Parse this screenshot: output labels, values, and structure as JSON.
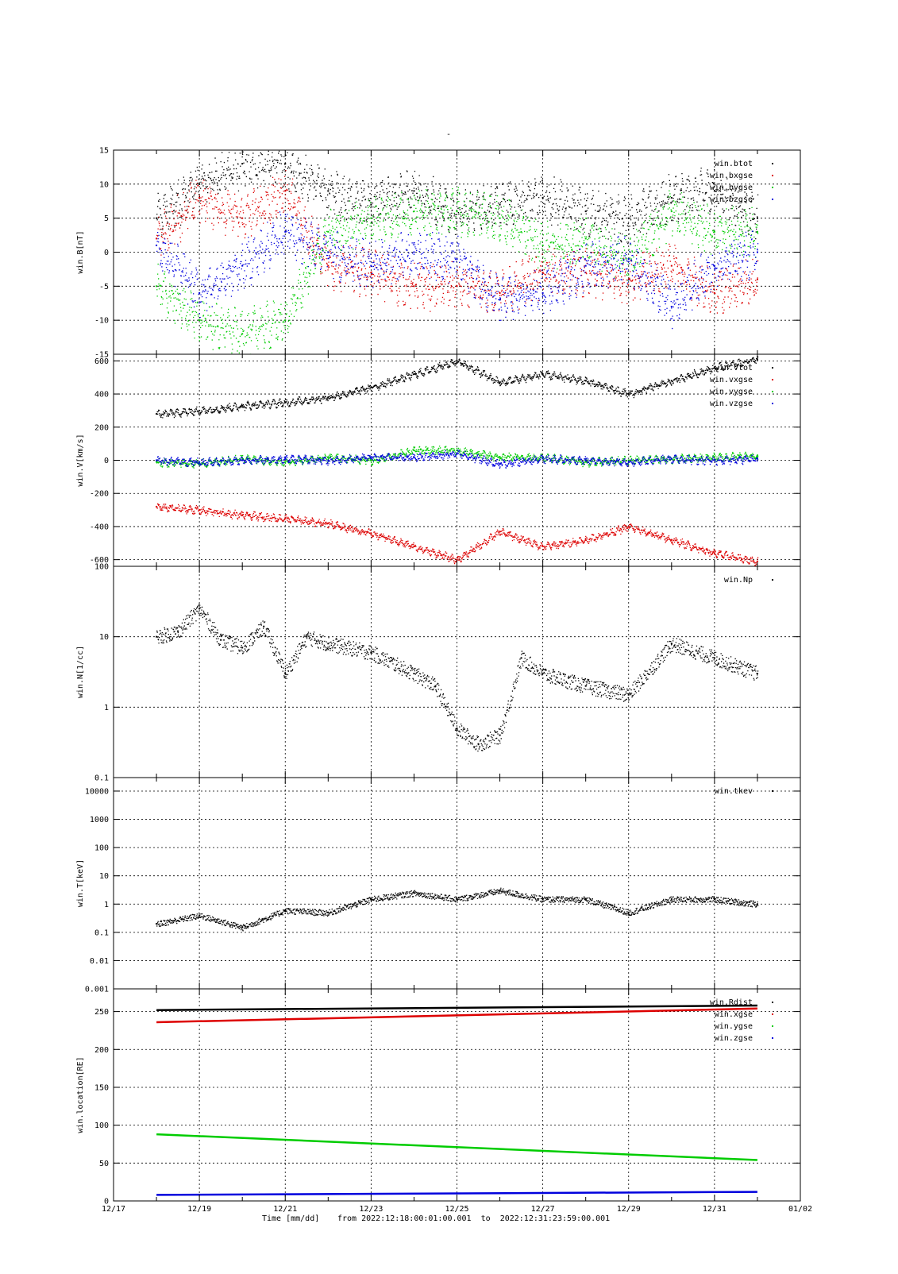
{
  "page_title": "-",
  "footer": {
    "xlabel": "Time [mm/dd]",
    "range_text": "from 2022:12:18:00:01:00.001  to  2022:12:31:23:59:00.001"
  },
  "colors": {
    "black": "#000000",
    "red": "#dd0000",
    "green": "#00cc00",
    "blue": "#0000dd"
  },
  "chart_data": [
    {
      "type": "scatter",
      "ylabel": "win.B[nT]",
      "xlim": [
        "12/17",
        "01/02"
      ],
      "ylim": [
        -15,
        15
      ],
      "yscale": "linear",
      "yticks": [
        -15,
        -10,
        -5,
        0,
        5,
        10,
        15
      ],
      "grid": true,
      "legend_position": "top-right",
      "series": [
        {
          "name": "win.btot",
          "color": "#000000",
          "x": [
            "12/18",
            "12/19",
            "12/20",
            "12/21",
            "12/22",
            "12/23",
            "12/24",
            "12/25",
            "12/26",
            "12/27",
            "12/28",
            "12/29",
            "12/30",
            "12/31",
            "12/31 24:00"
          ],
          "y": [
            5,
            10,
            13,
            13,
            9,
            7,
            9,
            6,
            7,
            8,
            6,
            5,
            8,
            9,
            5
          ]
        },
        {
          "name": "win.bxgse",
          "color": "#dd0000",
          "x": [
            "12/18",
            "12/19",
            "12/20",
            "12/21",
            "12/22",
            "12/23",
            "12/24",
            "12/25",
            "12/26",
            "12/27",
            "12/28",
            "12/29",
            "12/30",
            "12/31",
            "12/31 24:00"
          ],
          "y": [
            2,
            8,
            5,
            9,
            -2,
            -3,
            -5,
            -5,
            -6,
            -3,
            -3,
            -4,
            -2,
            -6,
            -4
          ]
        },
        {
          "name": "win.bygse",
          "color": "#00cc00",
          "x": [
            "12/18",
            "12/19",
            "12/20",
            "12/21",
            "12/22",
            "12/23",
            "12/24",
            "12/25",
            "12/26",
            "12/27",
            "12/28",
            "12/29",
            "12/30",
            "12/31",
            "12/31 24:00"
          ],
          "y": [
            -5,
            -10,
            -12,
            -10,
            3,
            5,
            6,
            6,
            5,
            1,
            2,
            -1,
            6,
            3,
            3
          ]
        },
        {
          "name": "win.bzgse",
          "color": "#0000dd",
          "x": [
            "12/18",
            "12/19",
            "12/20",
            "12/21",
            "12/22",
            "12/23",
            "12/24",
            "12/25",
            "12/26",
            "12/27",
            "12/28",
            "12/29",
            "12/30",
            "12/31",
            "12/31 24:00"
          ],
          "y": [
            1,
            -6,
            -2,
            3,
            0,
            -2,
            0,
            -1,
            -7,
            -6,
            -2,
            -1,
            -8,
            -2,
            0
          ]
        }
      ]
    },
    {
      "type": "scatter",
      "ylabel": "win.V[km/s]",
      "xlim": [
        "12/17",
        "01/02"
      ],
      "ylim": [
        -640,
        640
      ],
      "yscale": "linear",
      "yticks": [
        -600,
        -400,
        -200,
        0,
        200,
        400,
        600
      ],
      "grid": true,
      "legend_position": "top-right",
      "series": [
        {
          "name": "win.vtot",
          "color": "#000000",
          "x": [
            "12/18",
            "12/19",
            "12/20",
            "12/21",
            "12/22",
            "12/23",
            "12/24",
            "12/25",
            "12/26",
            "12/27",
            "12/28",
            "12/29",
            "12/30",
            "12/31",
            "12/31 24:00"
          ],
          "y": [
            280,
            300,
            330,
            350,
            380,
            440,
            520,
            600,
            470,
            520,
            480,
            400,
            480,
            560,
            610
          ]
        },
        {
          "name": "win.vxgse",
          "color": "#dd0000",
          "x": [
            "12/18",
            "12/19",
            "12/20",
            "12/21",
            "12/22",
            "12/23",
            "12/24",
            "12/25",
            "12/26",
            "12/27",
            "12/28",
            "12/29",
            "12/30",
            "12/31",
            "12/31 24:00"
          ],
          "y": [
            -280,
            -300,
            -330,
            -350,
            -380,
            -440,
            -520,
            -600,
            -430,
            -520,
            -480,
            -400,
            -480,
            -560,
            -610
          ]
        },
        {
          "name": "win.vygse",
          "color": "#00cc00",
          "x": [
            "12/18",
            "12/19",
            "12/20",
            "12/21",
            "12/22",
            "12/23",
            "12/24",
            "12/25",
            "12/26",
            "12/27",
            "12/28",
            "12/29",
            "12/30",
            "12/31",
            "12/31 24:00"
          ],
          "y": [
            -10,
            -20,
            10,
            -10,
            20,
            0,
            60,
            60,
            20,
            20,
            -10,
            0,
            10,
            20,
            30
          ]
        },
        {
          "name": "win.vzgse",
          "color": "#0000dd",
          "x": [
            "12/18",
            "12/19",
            "12/20",
            "12/21",
            "12/22",
            "12/23",
            "12/24",
            "12/25",
            "12/26",
            "12/27",
            "12/28",
            "12/29",
            "12/30",
            "12/31",
            "12/31 24:00"
          ],
          "y": [
            0,
            -10,
            0,
            10,
            0,
            20,
            20,
            40,
            -20,
            10,
            0,
            -10,
            10,
            0,
            10
          ]
        }
      ]
    },
    {
      "type": "scatter",
      "ylabel": "win.N[1/cc]",
      "xlim": [
        "12/17",
        "01/02"
      ],
      "ylim": [
        0.1,
        100
      ],
      "yscale": "log",
      "yticks": [
        0.1,
        1,
        10,
        100
      ],
      "grid": true,
      "legend_position": "top-right",
      "series": [
        {
          "name": "win.Np",
          "color": "#000000",
          "x": [
            "12/18",
            "12/18 12:00",
            "12/19",
            "12/19 12:00",
            "12/20",
            "12/20 12:00",
            "12/21",
            "12/21 12:00",
            "12/22",
            "12/23",
            "12/24",
            "12/24 12:00",
            "12/25",
            "12/25 12:00",
            "12/26",
            "12/26 12:00",
            "12/27",
            "12/28",
            "12/29",
            "12/30",
            "12/31",
            "12/31 24:00"
          ],
          "y": [
            10,
            12,
            25,
            9,
            7,
            14,
            3,
            10,
            8,
            6,
            3,
            2,
            0.5,
            0.3,
            0.4,
            5,
            3,
            2,
            1.5,
            8,
            5,
            3
          ]
        }
      ]
    },
    {
      "type": "scatter",
      "ylabel": "win.T[keV]",
      "xlim": [
        "12/17",
        "01/02"
      ],
      "ylim": [
        0.001,
        30000
      ],
      "yscale": "log",
      "yticks": [
        0.001,
        0.01,
        0.1,
        1,
        10,
        100,
        1000,
        10000
      ],
      "grid": true,
      "legend_position": "top-right",
      "series": [
        {
          "name": "win.tkev",
          "color": "#000000",
          "x": [
            "12/18",
            "12/19",
            "12/20",
            "12/21",
            "12/22",
            "12/23",
            "12/24",
            "12/25",
            "12/26",
            "12/27",
            "12/28",
            "12/29",
            "12/30",
            "12/31",
            "12/31 24:00"
          ],
          "y": [
            0.2,
            0.4,
            0.15,
            0.6,
            0.5,
            1.5,
            2.5,
            1.5,
            3,
            1.5,
            1.5,
            0.5,
            1.5,
            1.5,
            1
          ]
        }
      ]
    },
    {
      "type": "line",
      "ylabel": "win.location[RE]",
      "xlim": [
        "12/17",
        "01/02"
      ],
      "ylim": [
        0,
        280
      ],
      "yscale": "linear",
      "yticks": [
        0,
        50,
        100,
        150,
        200,
        250
      ],
      "grid": true,
      "legend_position": "top-right",
      "series": [
        {
          "name": "win.Rdist",
          "color": "#000000",
          "x": [
            "12/18",
            "12/31 24:00"
          ],
          "y": [
            252,
            258
          ]
        },
        {
          "name": "win.xgse",
          "color": "#dd0000",
          "x": [
            "12/18",
            "12/31 24:00"
          ],
          "y": [
            236,
            254
          ]
        },
        {
          "name": "win.ygse",
          "color": "#00cc00",
          "x": [
            "12/18",
            "12/31 24:00"
          ],
          "y": [
            88,
            54
          ]
        },
        {
          "name": "win.zgse",
          "color": "#0000dd",
          "x": [
            "12/18",
            "12/31 24:00"
          ],
          "y": [
            8,
            12
          ]
        }
      ]
    }
  ],
  "xaxis": {
    "ticks": [
      "12/17",
      "12/19",
      "12/21",
      "12/23",
      "12/25",
      "12/27",
      "12/29",
      "12/31",
      "01/02"
    ]
  }
}
